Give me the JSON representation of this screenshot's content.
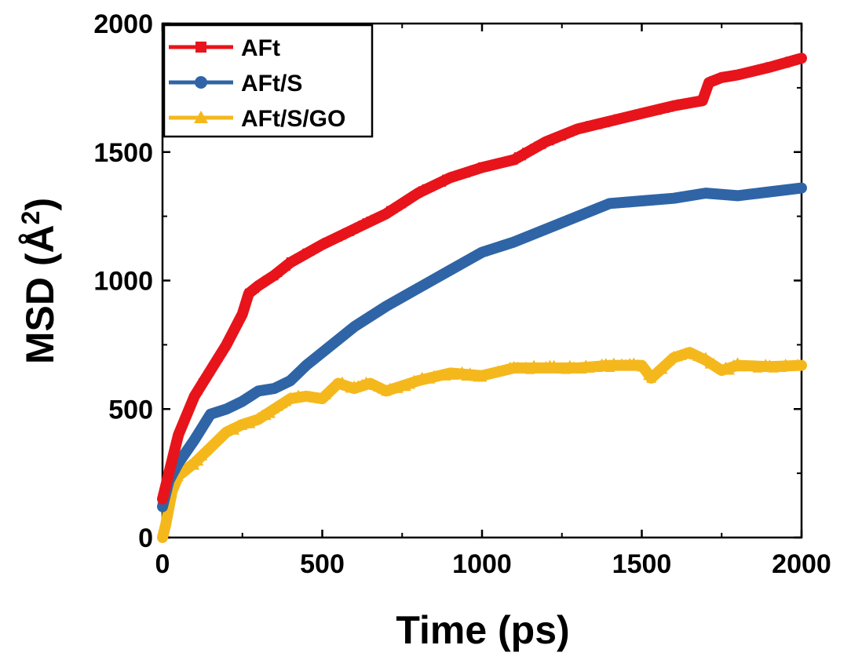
{
  "chart_data": {
    "type": "line",
    "xlabel": "Time (ps)",
    "ylabel_main": "MSD (Å",
    "ylabel_sup": "2",
    "ylabel_close": ")",
    "xlim": [
      0,
      2000
    ],
    "ylim": [
      0,
      2000
    ],
    "xticks": [
      "0",
      "500",
      "1000",
      "1500",
      "2000"
    ],
    "yticks": [
      "0",
      "500",
      "1000",
      "1500",
      "2000"
    ],
    "xtick_values": [
      0,
      500,
      1000,
      1500,
      2000
    ],
    "ytick_values": [
      0,
      500,
      1000,
      1500,
      2000
    ],
    "legend_position": "top-left",
    "series": [
      {
        "name": "AFt",
        "color": "#e8141b",
        "marker": "square",
        "x": [
          0,
          20,
          50,
          100,
          150,
          200,
          250,
          270,
          300,
          350,
          400,
          500,
          600,
          700,
          800,
          900,
          1000,
          1100,
          1200,
          1300,
          1400,
          1500,
          1600,
          1690,
          1710,
          1750,
          1800,
          1900,
          2000
        ],
        "y": [
          150,
          250,
          400,
          550,
          650,
          750,
          870,
          950,
          980,
          1020,
          1070,
          1140,
          1200,
          1260,
          1340,
          1400,
          1440,
          1470,
          1540,
          1590,
          1620,
          1650,
          1680,
          1700,
          1770,
          1790,
          1800,
          1830,
          1865
        ]
      },
      {
        "name": "AFt/S",
        "color": "#2f65a6",
        "marker": "circle",
        "x": [
          0,
          20,
          50,
          100,
          150,
          200,
          250,
          300,
          350,
          400,
          450,
          500,
          600,
          700,
          800,
          900,
          1000,
          1100,
          1200,
          1300,
          1400,
          1500,
          1600,
          1700,
          1800,
          1900,
          2000
        ],
        "y": [
          120,
          220,
          290,
          380,
          480,
          500,
          530,
          570,
          580,
          610,
          670,
          720,
          820,
          900,
          970,
          1040,
          1110,
          1150,
          1200,
          1250,
          1300,
          1310,
          1320,
          1340,
          1330,
          1345,
          1360
        ]
      },
      {
        "name": "AFt/S/GO",
        "color": "#f5b81c",
        "marker": "triangle",
        "x": [
          0,
          10,
          30,
          50,
          100,
          150,
          200,
          250,
          300,
          350,
          400,
          450,
          500,
          550,
          600,
          650,
          700,
          800,
          900,
          1000,
          1100,
          1200,
          1300,
          1400,
          1500,
          1530,
          1600,
          1650,
          1700,
          1750,
          1800,
          1900,
          2000
        ],
        "y": [
          0,
          50,
          180,
          240,
          290,
          350,
          410,
          440,
          460,
          500,
          540,
          550,
          540,
          600,
          580,
          600,
          570,
          610,
          640,
          630,
          660,
          660,
          660,
          670,
          670,
          620,
          700,
          720,
          690,
          650,
          670,
          665,
          670
        ]
      }
    ]
  }
}
